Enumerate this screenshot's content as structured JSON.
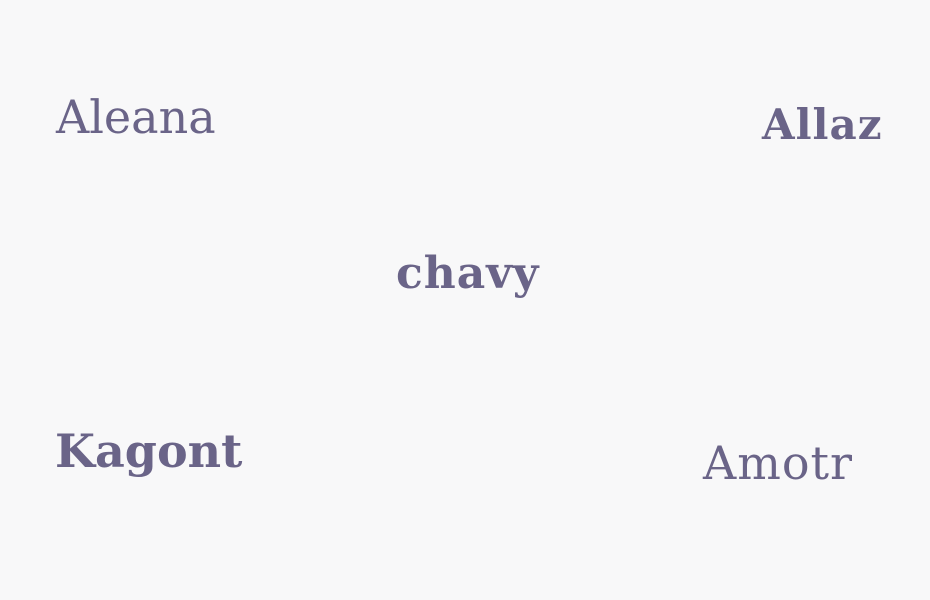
{
  "words": {
    "aleana": "Aleana",
    "allaz": "Allaz",
    "chavy": "chavy",
    "kagont": "Kagont",
    "amotr": "Amotr"
  },
  "colors": {
    "background": "#f8f8f9",
    "text": "#6a6488"
  }
}
